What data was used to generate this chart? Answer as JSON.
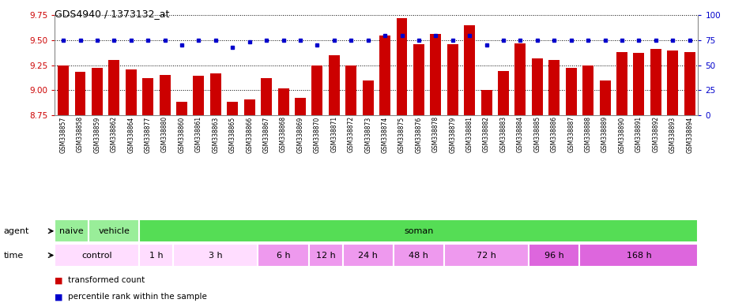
{
  "title": "GDS4940 / 1373132_at",
  "samples": [
    "GSM338857",
    "GSM338858",
    "GSM338859",
    "GSM338862",
    "GSM338864",
    "GSM338877",
    "GSM338880",
    "GSM338860",
    "GSM338861",
    "GSM338863",
    "GSM338865",
    "GSM338866",
    "GSM338867",
    "GSM338868",
    "GSM338869",
    "GSM338870",
    "GSM338871",
    "GSM338872",
    "GSM338873",
    "GSM338874",
    "GSM338875",
    "GSM338876",
    "GSM338878",
    "GSM338879",
    "GSM338881",
    "GSM338882",
    "GSM338883",
    "GSM338884",
    "GSM338885",
    "GSM338886",
    "GSM338887",
    "GSM338888",
    "GSM338889",
    "GSM338890",
    "GSM338891",
    "GSM338892",
    "GSM338893",
    "GSM338894"
  ],
  "bar_values": [
    9.25,
    9.18,
    9.22,
    9.3,
    9.21,
    9.12,
    9.15,
    8.88,
    9.14,
    9.17,
    8.88,
    8.91,
    9.12,
    9.02,
    8.92,
    9.25,
    9.35,
    9.25,
    9.1,
    9.55,
    9.72,
    9.46,
    9.56,
    9.46,
    9.65,
    9.0,
    9.19,
    9.47,
    9.32,
    9.3,
    9.22,
    9.25,
    9.1,
    9.38,
    9.37,
    9.41,
    9.4,
    9.38
  ],
  "percentile_values": [
    75,
    75,
    75,
    75,
    75,
    75,
    75,
    70,
    75,
    75,
    68,
    73,
    75,
    75,
    75,
    70,
    75,
    75,
    75,
    80,
    80,
    75,
    80,
    75,
    80,
    70,
    75,
    75,
    75,
    75,
    75,
    75,
    75,
    75,
    75,
    75,
    75,
    75
  ],
  "ylim_left": [
    8.75,
    9.75
  ],
  "ylim_right": [
    0,
    100
  ],
  "yticks_left": [
    8.75,
    9.0,
    9.25,
    9.5,
    9.75
  ],
  "yticks_right": [
    0,
    25,
    50,
    75,
    100
  ],
  "bar_color": "#cc0000",
  "percentile_color": "#0000cc",
  "agent_groups": [
    {
      "label": "naive",
      "start": 0,
      "end": 2,
      "color": "#99ee99"
    },
    {
      "label": "vehicle",
      "start": 2,
      "end": 5,
      "color": "#99ee99"
    },
    {
      "label": "soman",
      "start": 5,
      "end": 38,
      "color": "#55dd55"
    }
  ],
  "time_groups": [
    {
      "label": "control",
      "start": 0,
      "end": 5,
      "color": "#ffddff"
    },
    {
      "label": "1 h",
      "start": 5,
      "end": 7,
      "color": "#ffddff"
    },
    {
      "label": "3 h",
      "start": 7,
      "end": 12,
      "color": "#ffddff"
    },
    {
      "label": "6 h",
      "start": 12,
      "end": 15,
      "color": "#ee99ee"
    },
    {
      "label": "12 h",
      "start": 15,
      "end": 17,
      "color": "#ee99ee"
    },
    {
      "label": "24 h",
      "start": 17,
      "end": 20,
      "color": "#ee99ee"
    },
    {
      "label": "48 h",
      "start": 20,
      "end": 23,
      "color": "#ee99ee"
    },
    {
      "label": "72 h",
      "start": 23,
      "end": 28,
      "color": "#ee99ee"
    },
    {
      "label": "96 h",
      "start": 28,
      "end": 31,
      "color": "#dd66dd"
    },
    {
      "label": "168 h",
      "start": 31,
      "end": 38,
      "color": "#dd66dd"
    }
  ]
}
